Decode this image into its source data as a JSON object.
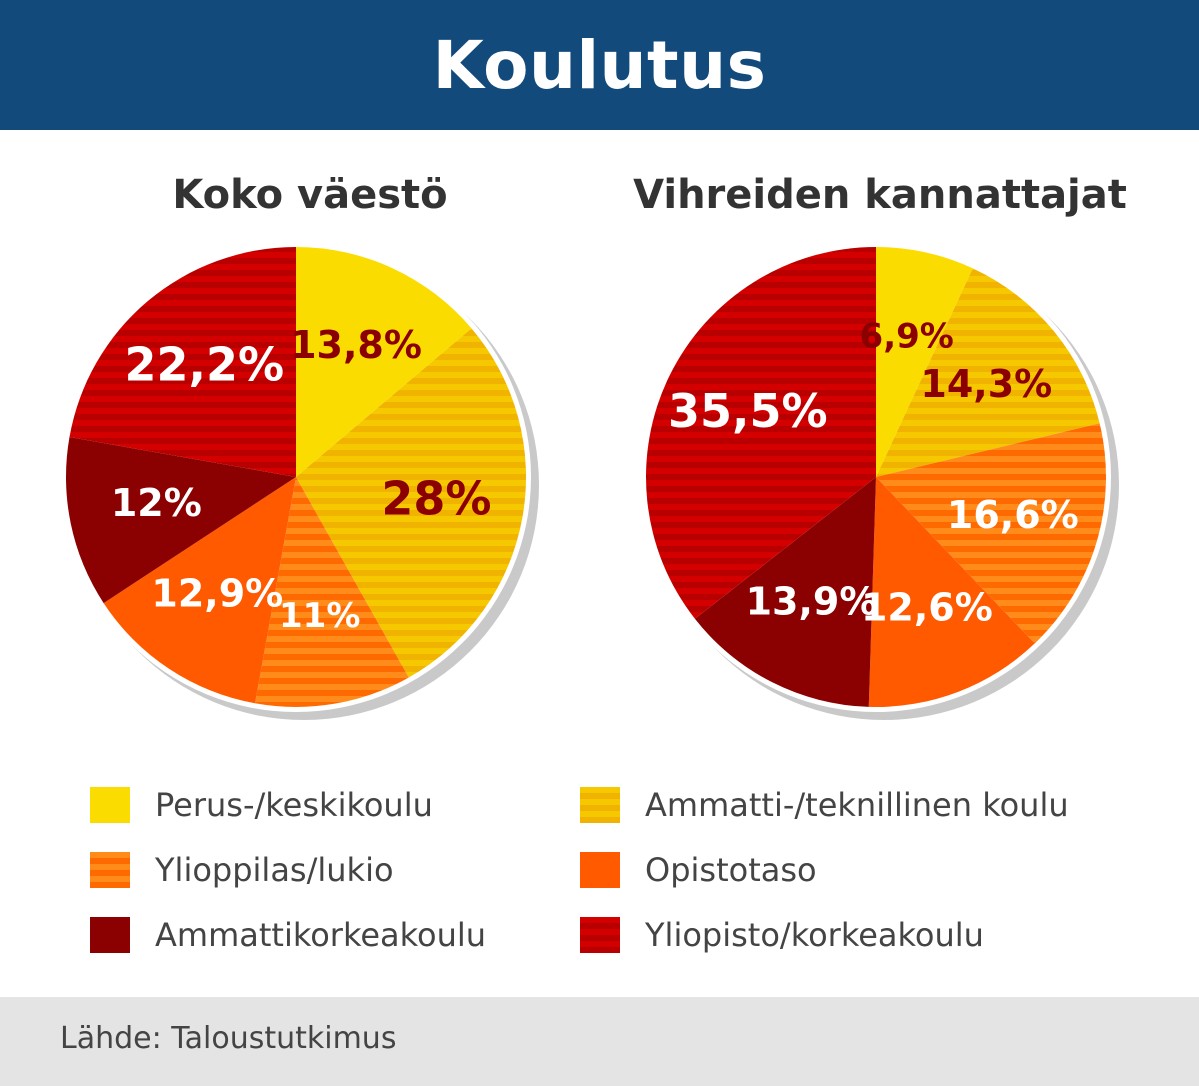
{
  "header": {
    "title": "Koulutus"
  },
  "colors": {
    "perus": "#fbdc00",
    "ammatti": "#f6c800",
    "ammatti_stripe": "#efb300",
    "ylioppilas": "#ff8c1a",
    "ylioppilas_stripe": "#ff6a00",
    "opisto": "#ff5a00",
    "amk": "#8b0000",
    "yliopisto": "#d40000",
    "yliopisto_stripe": "#b80000"
  },
  "legend": [
    {
      "key": "perus",
      "label": "Perus-/keskikoulu"
    },
    {
      "key": "ammatti",
      "label": "Ammatti-/teknillinen koulu"
    },
    {
      "key": "ylioppilas",
      "label": "Ylioppilas/lukio"
    },
    {
      "key": "opisto",
      "label": "Opistotaso"
    },
    {
      "key": "amk",
      "label": "Ammattikorkeakoulu"
    },
    {
      "key": "yliopisto",
      "label": "Yliopisto/korkeakoulu"
    }
  ],
  "chart_data": [
    {
      "type": "pie",
      "title": "Koko väestö",
      "categories": [
        "Perus-/keskikoulu",
        "Ammatti-/teknillinen koulu",
        "Ylioppilas/lukio",
        "Opistotaso",
        "Ammattikorkeakoulu",
        "Yliopisto/korkeakoulu"
      ],
      "values": [
        13.8,
        28,
        11,
        12.9,
        12,
        22.2
      ],
      "labels": [
        "13,8%",
        "28%",
        "11%",
        "12,9%",
        "12%",
        "22,2%"
      ]
    },
    {
      "type": "pie",
      "title": "Vihreiden kannattajat",
      "categories": [
        "Perus-/keskikoulu",
        "Ammatti-/teknillinen koulu",
        "Ylioppilas/lukio",
        "Opistotaso",
        "Ammattikorkeakoulu",
        "Yliopisto/korkeakoulu"
      ],
      "values": [
        6.9,
        14.3,
        16.6,
        12.6,
        13.9,
        35.5
      ],
      "labels": [
        "6,9%",
        "14,3%",
        "16,6%",
        "12,6%",
        "13,9%",
        "35,5%"
      ]
    }
  ],
  "footer": {
    "source": "Lähde: Taloustutkimus"
  }
}
